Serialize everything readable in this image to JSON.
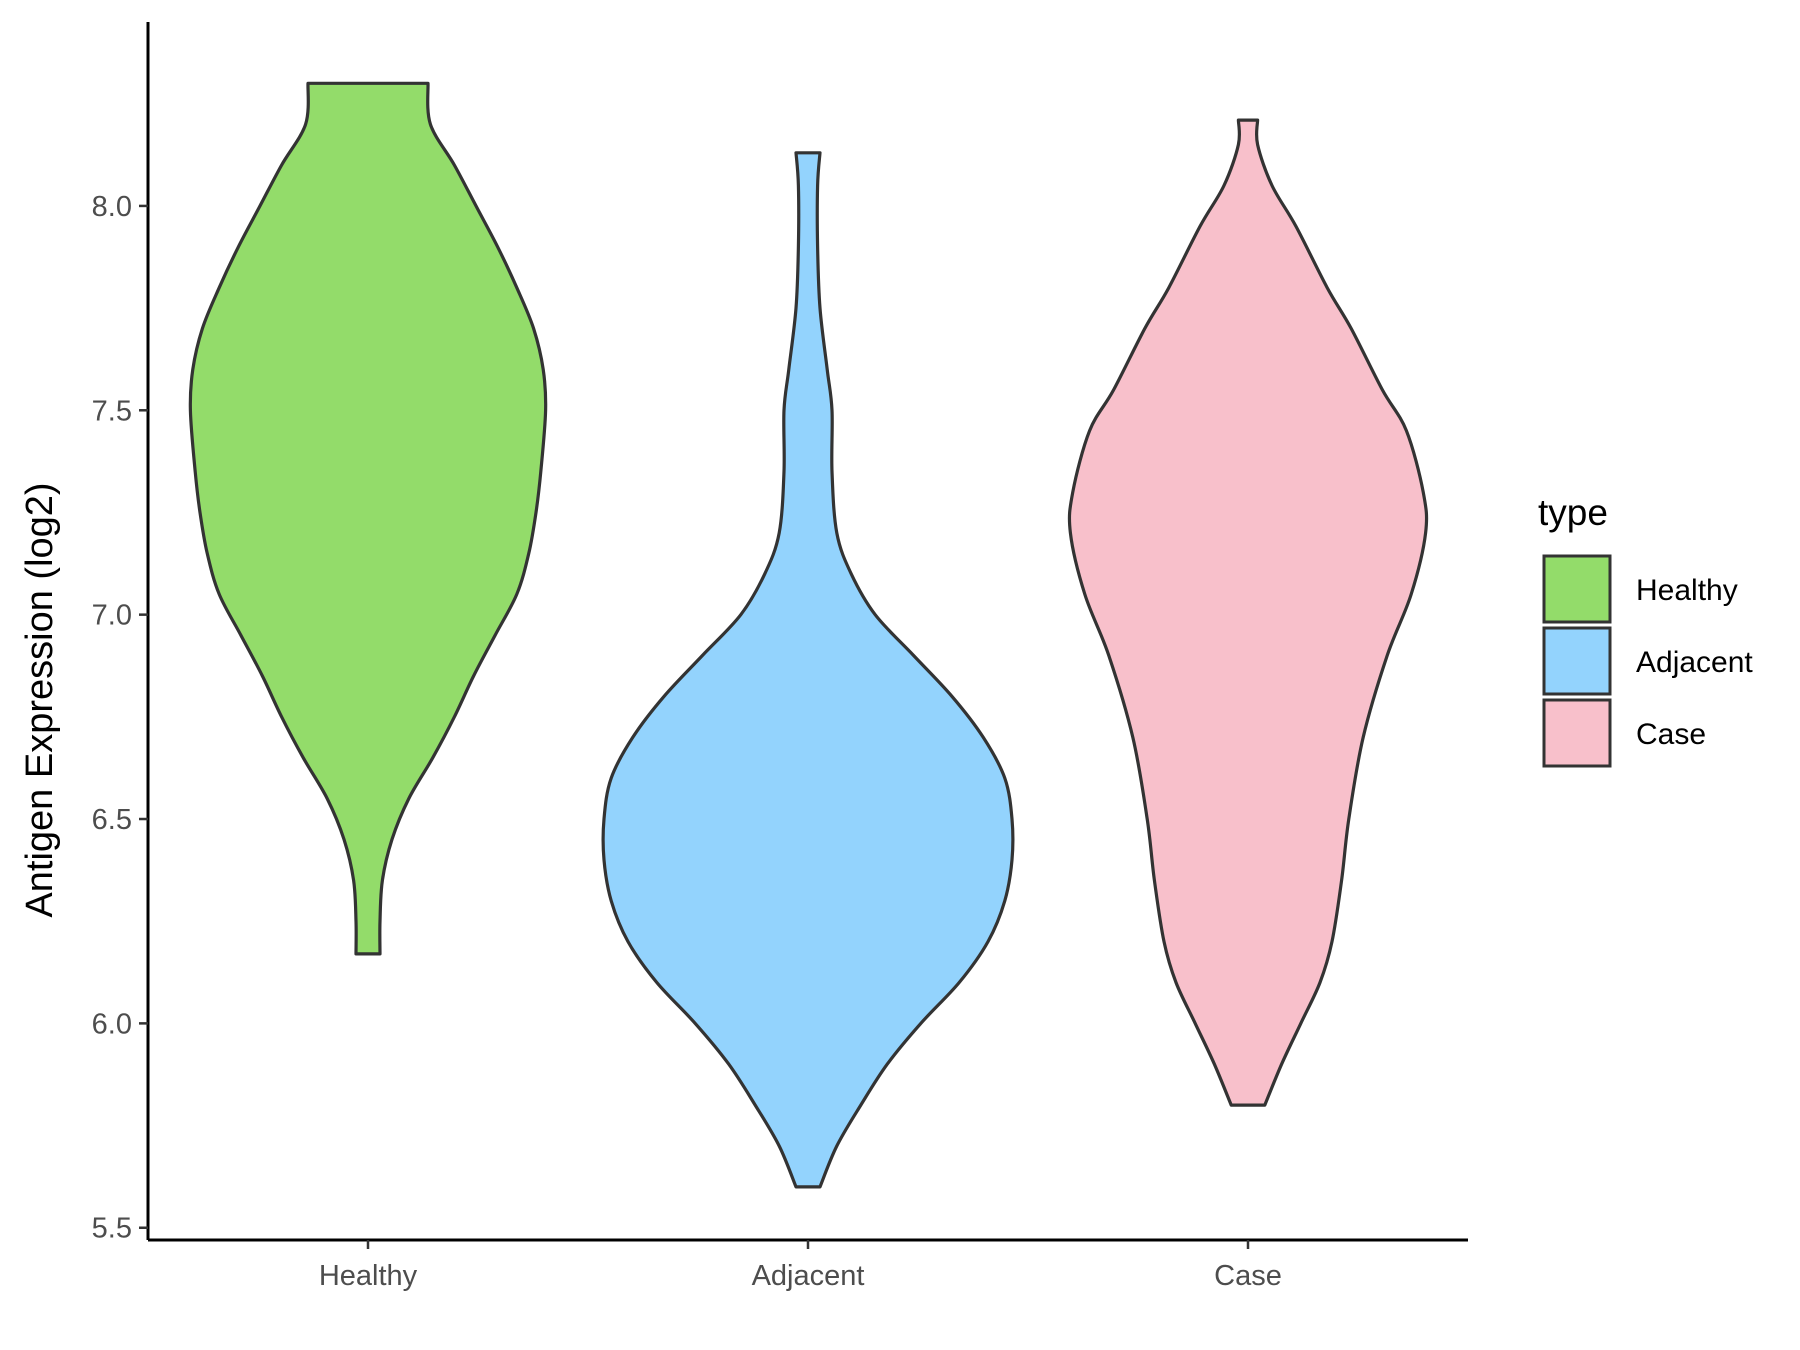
{
  "chart_data": {
    "type": "violin",
    "ylabel": "Antigen Expression (log2)",
    "xlabel": "",
    "ylim": [
      5.47,
      8.45
    ],
    "y_ticks": [
      "5.5",
      "6.0",
      "6.5",
      "7.0",
      "7.5",
      "8.0"
    ],
    "categories": [
      "Healthy",
      "Adjacent",
      "Case"
    ],
    "grid": false,
    "legend": {
      "title": "type",
      "position": "right",
      "entries": [
        "Healthy",
        "Adjacent",
        "Case"
      ]
    },
    "series": [
      {
        "name": "Healthy",
        "color": "#93DC6A",
        "y_min": 6.17,
        "y_max": 8.3,
        "density": [
          [
            6.17,
            0.05
          ],
          [
            6.25,
            0.05
          ],
          [
            6.35,
            0.06
          ],
          [
            6.45,
            0.1
          ],
          [
            6.55,
            0.17
          ],
          [
            6.65,
            0.27
          ],
          [
            6.75,
            0.36
          ],
          [
            6.85,
            0.44
          ],
          [
            6.95,
            0.53
          ],
          [
            7.05,
            0.62
          ],
          [
            7.15,
            0.67
          ],
          [
            7.25,
            0.7
          ],
          [
            7.35,
            0.72
          ],
          [
            7.5,
            0.74
          ],
          [
            7.6,
            0.73
          ],
          [
            7.7,
            0.69
          ],
          [
            7.8,
            0.62
          ],
          [
            7.9,
            0.54
          ],
          [
            8.0,
            0.45
          ],
          [
            8.1,
            0.36
          ],
          [
            8.2,
            0.26
          ],
          [
            8.3,
            0.25
          ]
        ]
      },
      {
        "name": "Adjacent",
        "color": "#93D3FD",
        "y_min": 5.6,
        "y_max": 8.13,
        "density": [
          [
            5.6,
            0.05
          ],
          [
            5.7,
            0.12
          ],
          [
            5.8,
            0.22
          ],
          [
            5.9,
            0.33
          ],
          [
            6.0,
            0.47
          ],
          [
            6.1,
            0.63
          ],
          [
            6.2,
            0.75
          ],
          [
            6.3,
            0.82
          ],
          [
            6.4,
            0.85
          ],
          [
            6.5,
            0.85
          ],
          [
            6.6,
            0.82
          ],
          [
            6.7,
            0.73
          ],
          [
            6.8,
            0.6
          ],
          [
            6.9,
            0.44
          ],
          [
            7.0,
            0.28
          ],
          [
            7.1,
            0.18
          ],
          [
            7.2,
            0.12
          ],
          [
            7.35,
            0.1
          ],
          [
            7.5,
            0.1
          ],
          [
            7.6,
            0.08
          ],
          [
            7.75,
            0.05
          ],
          [
            7.9,
            0.04
          ],
          [
            8.05,
            0.04
          ],
          [
            8.13,
            0.05
          ]
        ]
      },
      {
        "name": "Case",
        "color": "#F8C0CB",
        "y_min": 5.8,
        "y_max": 8.21,
        "density": [
          [
            5.8,
            0.07
          ],
          [
            5.9,
            0.14
          ],
          [
            6.0,
            0.22
          ],
          [
            6.1,
            0.3
          ],
          [
            6.2,
            0.35
          ],
          [
            6.35,
            0.39
          ],
          [
            6.5,
            0.42
          ],
          [
            6.7,
            0.48
          ],
          [
            6.9,
            0.58
          ],
          [
            7.05,
            0.68
          ],
          [
            7.2,
            0.74
          ],
          [
            7.3,
            0.73
          ],
          [
            7.45,
            0.66
          ],
          [
            7.55,
            0.56
          ],
          [
            7.7,
            0.43
          ],
          [
            7.8,
            0.33
          ],
          [
            7.95,
            0.2
          ],
          [
            8.05,
            0.1
          ],
          [
            8.15,
            0.04
          ],
          [
            8.21,
            0.04
          ]
        ]
      }
    ]
  }
}
